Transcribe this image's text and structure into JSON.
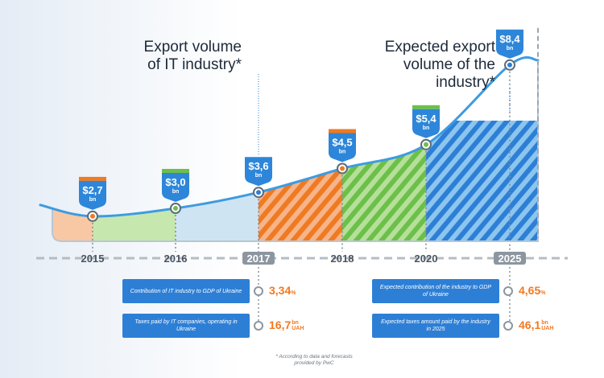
{
  "headings": {
    "left": "Export volume\nof IT industry*",
    "right": "Expected export\nvolume of the\nindustry*"
  },
  "chart_data": {
    "type": "area",
    "title": "",
    "categories": [
      "2015",
      "2016",
      "2017",
      "2018",
      "2020",
      "2025"
    ],
    "series": [
      {
        "values": [
          2.7,
          3.0,
          3.6,
          4.5,
          5.4,
          8.4
        ]
      }
    ],
    "value_labels": [
      "$2,7",
      "$3,0",
      "$3,6",
      "$4,5",
      "$5,4",
      "$8,4"
    ],
    "value_unit": "bn",
    "highlighted_years": [
      "2017",
      "2025"
    ],
    "colors": {
      "orange": "#f07a21",
      "green": "#6cc04a",
      "blue": "#2d7fd6",
      "line": "#3e9be0",
      "fill_past": "#cfe4f3"
    }
  },
  "info_left": {
    "rows": [
      {
        "label": "Contribution of IT industry to GDP of Ukraine",
        "value": "3,34",
        "suffix": "%"
      },
      {
        "label": "Taxes paid by IT companies, operating in Ukraine",
        "value": "16,7",
        "suffix_top": "bn",
        "suffix_bottom": "UAH"
      }
    ]
  },
  "info_right": {
    "rows": [
      {
        "label": "Expected contribution of the industry to GDP of Ukraine",
        "value": "4,65",
        "suffix": "%"
      },
      {
        "label": "Expected taxes amount paid by the industry in 2025",
        "value": "46,1",
        "suffix_top": "bn",
        "suffix_bottom": "UAH"
      }
    ]
  },
  "footnote": "* According to data and forecasts\nprovided by PwC"
}
